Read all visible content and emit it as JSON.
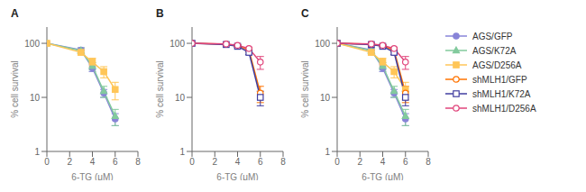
{
  "chart_data": [
    {
      "type": "line",
      "title": "A",
      "xlabel": "6-TG (μM)",
      "ylabel": "% cell survival",
      "log": "y",
      "grid": false,
      "xlim": [
        0,
        8
      ],
      "xticks": [
        0,
        2,
        4,
        6,
        8
      ],
      "ylim": [
        1,
        200
      ],
      "yticks": [
        1,
        10,
        100
      ],
      "x": [
        0,
        3,
        4,
        5,
        6
      ],
      "series": [
        {
          "name": "AGS/GFP",
          "color": "#8884d8",
          "marker": "circle",
          "values": [
            100,
            75,
            35,
            12,
            4
          ],
          "yerr": [
            0,
            8,
            5,
            2,
            1
          ]
        },
        {
          "name": "AGS/K72A",
          "color": "#82ca9d",
          "marker": "triangle",
          "values": [
            100,
            73,
            38,
            13,
            4.5
          ],
          "yerr": [
            0,
            9,
            6,
            3,
            1.5
          ]
        },
        {
          "name": "AGS/D256A",
          "color": "#ffc658",
          "marker": "square",
          "values": [
            100,
            68,
            45,
            30,
            14
          ],
          "yerr": [
            0,
            7,
            8,
            7,
            5
          ]
        }
      ]
    },
    {
      "type": "line",
      "title": "B",
      "xlabel": "6-TG (μM)",
      "ylabel": "% cell survival",
      "log": "y",
      "grid": false,
      "xlim": [
        0,
        8
      ],
      "xticks": [
        0,
        2,
        4,
        6,
        8
      ],
      "ylim": [
        1,
        200
      ],
      "yticks": [
        1,
        10,
        100
      ],
      "x": [
        0,
        3,
        4,
        5,
        6
      ],
      "series": [
        {
          "name": "shMLH1/GFP",
          "color": "#ff7300",
          "marker": "open_circle",
          "values": [
            100,
            96,
            90,
            75,
            12
          ],
          "yerr": [
            0,
            2,
            3,
            5,
            4
          ]
        },
        {
          "name": "shMLH1/K72A",
          "color": "#413ea0",
          "marker": "open_square",
          "values": [
            100,
            95,
            88,
            68,
            10
          ],
          "yerr": [
            0,
            2,
            4,
            6,
            3
          ]
        },
        {
          "name": "shMLH1/D256A",
          "color": "#e0457b",
          "marker": "open_circle",
          "values": [
            100,
            97,
            92,
            80,
            45
          ],
          "yerr": [
            0,
            2,
            3,
            5,
            12
          ]
        }
      ]
    },
    {
      "type": "line",
      "title": "C",
      "xlabel": "6-TG (μM)",
      "ylabel": "% cell survival",
      "log": "y",
      "grid": false,
      "legend": "right",
      "xlim": [
        0,
        8
      ],
      "xticks": [
        0,
        2,
        4,
        6,
        8
      ],
      "ylim": [
        1,
        200
      ],
      "yticks": [
        1,
        10,
        100
      ],
      "x": [
        0,
        3,
        4,
        5,
        6
      ],
      "series": [
        {
          "name": "AGS/GFP",
          "color": "#8884d8",
          "marker": "circle",
          "values": [
            100,
            75,
            35,
            12,
            4
          ],
          "yerr": [
            0,
            8,
            5,
            2,
            1
          ]
        },
        {
          "name": "AGS/K72A",
          "color": "#82ca9d",
          "marker": "triangle",
          "values": [
            100,
            73,
            38,
            13,
            4.5
          ],
          "yerr": [
            0,
            9,
            6,
            3,
            1.5
          ]
        },
        {
          "name": "AGS/D256A",
          "color": "#ffc658",
          "marker": "square",
          "values": [
            100,
            68,
            45,
            30,
            14
          ],
          "yerr": [
            0,
            7,
            8,
            7,
            5
          ]
        },
        {
          "name": "shMLH1/GFP",
          "color": "#ff7300",
          "marker": "open_circle",
          "values": [
            100,
            96,
            90,
            75,
            12
          ],
          "yerr": [
            0,
            2,
            3,
            5,
            4
          ]
        },
        {
          "name": "shMLH1/K72A",
          "color": "#413ea0",
          "marker": "open_square",
          "values": [
            100,
            95,
            88,
            68,
            10
          ],
          "yerr": [
            0,
            2,
            4,
            6,
            3
          ]
        },
        {
          "name": "shMLH1/D256A",
          "color": "#e0457b",
          "marker": "open_circle",
          "values": [
            100,
            97,
            92,
            80,
            45
          ],
          "yerr": [
            0,
            2,
            3,
            5,
            12
          ]
        }
      ]
    }
  ]
}
